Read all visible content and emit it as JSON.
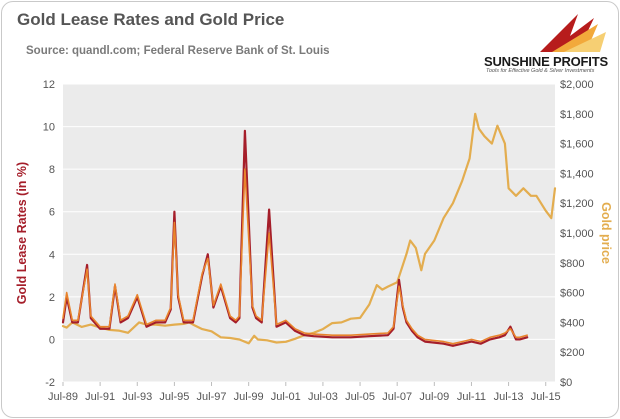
{
  "header": {
    "title": "Gold Lease Rates and Gold Price",
    "subtitle": "Source: quandl.com; Federal Reserve Bank of St. Louis"
  },
  "logo": {
    "word": "SUNSHINE PROFITS",
    "tagline": "Tools for Effective Gold & Silver Investments"
  },
  "colors": {
    "lease_dark": "#a51e2a",
    "lease_light": "#e8832c",
    "gold": "#e3ad4f",
    "plot_bg": "#ebebeb",
    "grid": "#ffffff",
    "axis_text": "#555555"
  },
  "chart_data": {
    "type": "line",
    "title": "Gold Lease Rates and Gold Price",
    "subtitle": "Source: quandl.com; Federal Reserve Bank of St. Louis",
    "ylabel": "Gold Lease Rates (in %)",
    "y2label": "Gold price",
    "ylim": [
      -2,
      12
    ],
    "y2lim": [
      0,
      2000
    ],
    "xlim": [
      1989.5,
      2016.0
    ],
    "y_ticks": [
      "12",
      "10",
      "8",
      "6",
      "4",
      "2",
      "0",
      "-2"
    ],
    "y2_ticks": [
      "$2,000",
      "$1,800",
      "$1,600",
      "$1,400",
      "$1,200",
      "$1,000",
      "$800",
      "$600",
      "$400",
      "$200",
      "$0"
    ],
    "x_ticks": [
      "Jul-89",
      "Jul-91",
      "Jul-93",
      "Jul-95",
      "Jul-97",
      "Jul-99",
      "Jul-01",
      "Jul-03",
      "Jul-05",
      "Jul-07",
      "Jul-09",
      "Jul-11",
      "Jul-13",
      "Jul-15"
    ],
    "grid": true,
    "legend": "none",
    "series": [
      {
        "axis": "right",
        "x": [
          1989.5,
          1989.7,
          1990.0,
          1990.5,
          1991.0,
          1991.5,
          1992.0,
          1992.5,
          1993.0,
          1993.6,
          1994.0,
          1994.5,
          1995.0,
          1995.5,
          1996.0,
          1996.3,
          1996.5,
          1997.0,
          1997.5,
          1998.0,
          1998.5,
          1999.0,
          1999.5,
          1999.8,
          2000.0,
          2000.5,
          2001.0,
          2001.5,
          2002.0,
          2002.5,
          2003.0,
          2003.5,
          2004.0,
          2004.5,
          2005.0,
          2005.5,
          2006.0,
          2006.4,
          2006.7,
          2007.0,
          2007.5,
          2008.0,
          2008.2,
          2008.5,
          2008.8,
          2009.0,
          2009.5,
          2010.0,
          2010.5,
          2011.0,
          2011.4,
          2011.7,
          2011.9,
          2012.2,
          2012.6,
          2012.9,
          2013.3,
          2013.5,
          2013.9,
          2014.3,
          2014.7,
          2015.0,
          2015.5,
          2015.8,
          2016.0
        ],
        "values": [
          375,
          365,
          400,
          370,
          385,
          365,
          350,
          345,
          330,
          400,
          385,
          385,
          378,
          385,
          390,
          400,
          385,
          355,
          340,
          300,
          295,
          285,
          260,
          310,
          285,
          280,
          265,
          270,
          290,
          315,
          330,
          355,
          395,
          400,
          425,
          430,
          520,
          650,
          620,
          640,
          670,
          860,
          950,
          900,
          750,
          860,
          950,
          1100,
          1200,
          1350,
          1500,
          1800,
          1700,
          1650,
          1600,
          1720,
          1600,
          1300,
          1250,
          1300,
          1250,
          1250,
          1150,
          1100,
          1300
        ]
      },
      {
        "axis": "left",
        "x": [
          1989.5,
          1989.7,
          1990.0,
          1990.3,
          1990.8,
          1991.0,
          1991.5,
          1992.0,
          1992.3,
          1992.6,
          1993.0,
          1993.5,
          1994.0,
          1994.5,
          1995.0,
          1995.3,
          1995.5,
          1995.7,
          1996.0,
          1996.5,
          1997.0,
          1997.3,
          1997.6,
          1998.0,
          1998.5,
          1998.8,
          1999.0,
          1999.3,
          1999.7,
          1999.9,
          2000.2,
          2000.6,
          2001.0,
          2001.5,
          2002.0,
          2002.5,
          2003.0,
          2004.0,
          2005.0,
          2006.0,
          2007.0,
          2007.3,
          2007.6,
          2007.8,
          2008.0,
          2008.3,
          2008.6,
          2009.0,
          2010.0,
          2010.5,
          2011.0,
          2011.5,
          2012.0,
          2012.5,
          2013.0,
          2013.3,
          2013.6,
          2013.9,
          2014.1,
          2014.5
        ],
        "values": [
          0.8,
          2.0,
          0.8,
          0.8,
          3.5,
          1.0,
          0.5,
          0.5,
          2.5,
          0.8,
          1.0,
          2.0,
          0.6,
          0.8,
          0.8,
          1.4,
          6.0,
          2.0,
          0.8,
          0.8,
          3.0,
          4.0,
          1.5,
          2.5,
          1.0,
          0.8,
          1.0,
          9.8,
          1.5,
          1.0,
          0.8,
          6.1,
          0.6,
          0.8,
          0.4,
          0.2,
          0.15,
          0.1,
          0.1,
          0.15,
          0.2,
          0.5,
          2.8,
          1.5,
          0.8,
          0.4,
          0.1,
          -0.1,
          -0.2,
          -0.3,
          -0.2,
          -0.1,
          -0.2,
          0.0,
          0.1,
          0.2,
          0.6,
          0.0,
          0.0,
          0.1
        ]
      },
      {
        "axis": "left",
        "x": [
          1989.5,
          1989.7,
          1990.0,
          1990.3,
          1990.8,
          1991.0,
          1991.5,
          1992.0,
          1992.3,
          1992.6,
          1993.0,
          1993.5,
          1994.0,
          1994.5,
          1995.0,
          1995.3,
          1995.5,
          1995.7,
          1996.0,
          1996.5,
          1997.0,
          1997.3,
          1997.6,
          1998.0,
          1998.5,
          1998.8,
          1999.0,
          1999.3,
          1999.7,
          1999.9,
          2000.2,
          2000.6,
          2001.0,
          2001.5,
          2002.0,
          2002.5,
          2003.0,
          2004.0,
          2005.0,
          2006.0,
          2007.0,
          2007.3,
          2007.6,
          2007.8,
          2008.0,
          2008.3,
          2008.6,
          2009.0,
          2010.0,
          2010.5,
          2011.0,
          2011.5,
          2012.0,
          2012.5,
          2013.0,
          2013.3,
          2013.6,
          2013.9,
          2014.1,
          2014.5
        ],
        "values": [
          1.0,
          2.2,
          0.9,
          0.9,
          3.3,
          1.1,
          0.6,
          0.6,
          2.6,
          0.9,
          1.1,
          2.1,
          0.7,
          0.9,
          0.9,
          1.5,
          5.5,
          2.1,
          0.9,
          0.9,
          3.1,
          3.8,
          1.6,
          2.6,
          1.1,
          0.9,
          1.1,
          8.0,
          1.6,
          1.1,
          0.9,
          5.0,
          0.7,
          0.9,
          0.5,
          0.3,
          0.25,
          0.2,
          0.2,
          0.25,
          0.3,
          0.6,
          2.5,
          1.6,
          0.9,
          0.5,
          0.2,
          0.0,
          -0.1,
          -0.2,
          -0.1,
          0.0,
          -0.1,
          0.1,
          0.2,
          0.3,
          0.5,
          0.1,
          0.1,
          0.2
        ]
      }
    ]
  }
}
